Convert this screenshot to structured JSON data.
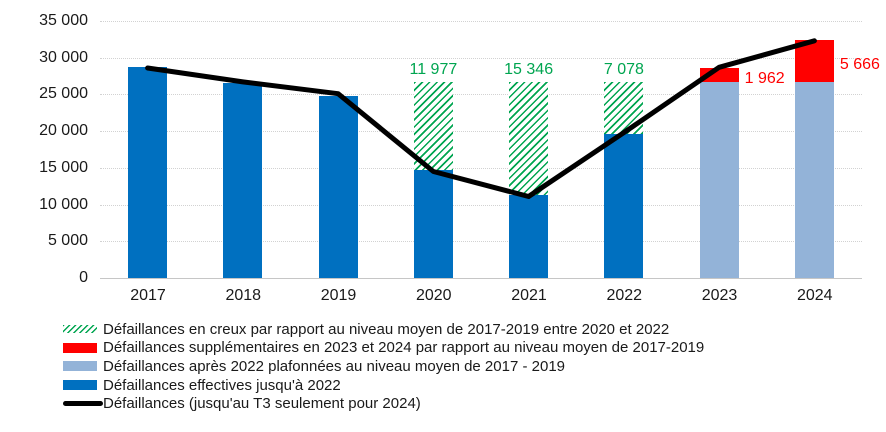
{
  "chart_data": {
    "type": "bar",
    "title": "",
    "categories": [
      "2017",
      "2018",
      "2019",
      "2020",
      "2021",
      "2022",
      "2023",
      "2024"
    ],
    "ylim": [
      0,
      35000
    ],
    "y_ticks": [
      {
        "value": 0,
        "label": "0"
      },
      {
        "value": 5000,
        "label": "5 000"
      },
      {
        "value": 10000,
        "label": "10 000"
      },
      {
        "value": 15000,
        "label": "15 000"
      },
      {
        "value": 20000,
        "label": "20 000"
      },
      {
        "value": 25000,
        "label": "25 000"
      },
      {
        "value": 30000,
        "label": "30 000"
      },
      {
        "value": 35000,
        "label": "35 000"
      }
    ],
    "average_2017_2019_cap": 26700,
    "bars": [
      {
        "category": "2017",
        "segments": [
          {
            "style": "blue",
            "value": 28700
          }
        ]
      },
      {
        "category": "2018",
        "segments": [
          {
            "style": "blue",
            "value": 26500
          }
        ]
      },
      {
        "category": "2019",
        "segments": [
          {
            "style": "blue",
            "value": 24800
          }
        ]
      },
      {
        "category": "2020",
        "segments": [
          {
            "style": "blue",
            "value": 14723
          },
          {
            "style": "hatch",
            "value": 11977
          }
        ],
        "label": {
          "text": "11 977",
          "style": "green",
          "position": "above"
        }
      },
      {
        "category": "2021",
        "segments": [
          {
            "style": "blue",
            "value": 11354
          },
          {
            "style": "hatch",
            "value": 15346
          }
        ],
        "label": {
          "text": "15 346",
          "style": "green",
          "position": "above"
        }
      },
      {
        "category": "2022",
        "segments": [
          {
            "style": "blue",
            "value": 19622
          },
          {
            "style": "hatch",
            "value": 7078
          }
        ],
        "label": {
          "text": "7 078",
          "style": "green",
          "position": "above"
        }
      },
      {
        "category": "2023",
        "segments": [
          {
            "style": "light_blue",
            "value": 26700
          },
          {
            "style": "red",
            "value": 1962
          }
        ],
        "label": {
          "text": "1 962",
          "style": "red",
          "position": "right"
        }
      },
      {
        "category": "2024",
        "segments": [
          {
            "style": "light_blue",
            "value": 26700
          },
          {
            "style": "red",
            "value": 5666
          }
        ],
        "label": {
          "text": "5 666",
          "style": "red",
          "position": "right"
        }
      }
    ],
    "line_series": {
      "name": "Défaillances (jusqu'au T3 seulement pour 2024)",
      "values": [
        28600,
        26700,
        25100,
        14500,
        11100,
        19800,
        28700,
        32300
      ]
    },
    "grid": true,
    "legend_position": "bottom-left"
  },
  "legend": {
    "items": [
      {
        "swatch": "hatch",
        "label": "Défaillances en creux par rapport au niveau moyen de 2017-2019 entre 2020 et 2022"
      },
      {
        "swatch": "red",
        "label": "Défaillances supplémentaires en 2023 et 2024 par rapport au niveau moyen de 2017-2019"
      },
      {
        "swatch": "light_blue",
        "label": "Défaillances après 2022 plafonnées au niveau moyen de 2017 - 2019"
      },
      {
        "swatch": "blue",
        "label": "Défaillances effectives jusqu'à 2022"
      },
      {
        "swatch": "line",
        "label": "Défaillances (jusqu'au T3 seulement pour 2024)"
      }
    ]
  },
  "colors": {
    "blue": "#0070C0",
    "light_blue": "#93B3D8",
    "red": "#FF0000",
    "green": "#00A550",
    "line": "#000000",
    "grid": "#D2D2D2"
  }
}
